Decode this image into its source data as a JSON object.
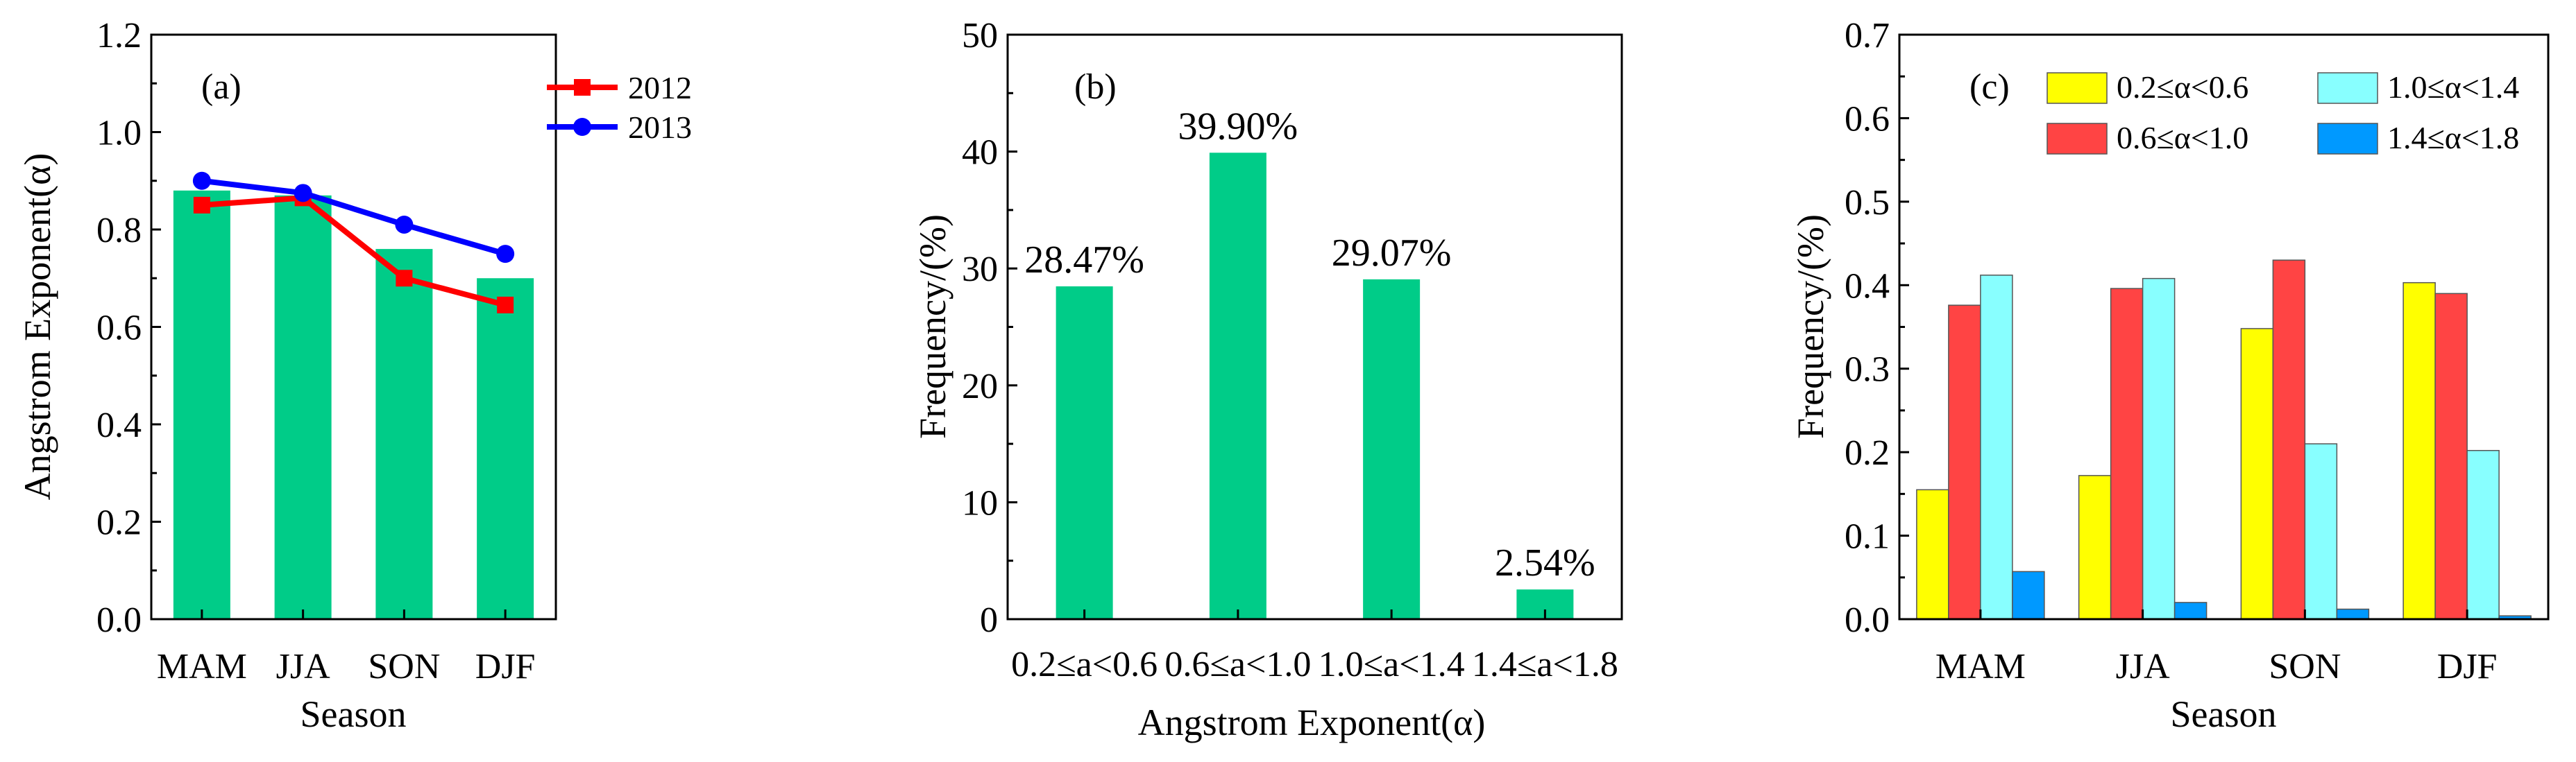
{
  "chart_data": [
    {
      "type": "bar",
      "panel_label": "(a)",
      "categories": [
        "MAM",
        "JJA",
        "SON",
        "DJF"
      ],
      "values": [
        0.88,
        0.87,
        0.76,
        0.7
      ],
      "bar_color": "#00cc88",
      "lines": [
        {
          "name": "2012",
          "values": [
            0.85,
            0.865,
            0.7,
            0.645
          ],
          "color": "#ff0000",
          "marker": "square"
        },
        {
          "name": "2013",
          "values": [
            0.9,
            0.875,
            0.81,
            0.75
          ],
          "color": "#0000ff",
          "marker": "circle"
        }
      ],
      "xlabel": "Season",
      "ylabel": "Angstrom Exponent(α)",
      "ylim": [
        0,
        1.2
      ],
      "yticks": [
        "0.0",
        "0.2",
        "0.4",
        "0.6",
        "0.8",
        "1.0",
        "1.2"
      ],
      "legend_position": "top-right"
    },
    {
      "type": "bar",
      "panel_label": "(b)",
      "categories": [
        "0.2≤a<0.6",
        "0.6≤a<1.0",
        "1.0≤a<1.4",
        "1.4≤a<1.8"
      ],
      "values": [
        28.47,
        39.9,
        29.07,
        2.54
      ],
      "data_labels": [
        "28.47%",
        "39.90%",
        "29.07%",
        "2.54%"
      ],
      "bar_color": "#00cc88",
      "xlabel": "Angstrom Exponent(α)",
      "ylabel": "Frequency/(%)",
      "ylim": [
        0,
        50
      ],
      "yticks": [
        "0",
        "10",
        "20",
        "30",
        "40",
        "50"
      ]
    },
    {
      "type": "bar",
      "panel_label": "(c)",
      "categories": [
        "MAM",
        "JJA",
        "SON",
        "DJF"
      ],
      "series": [
        {
          "name": "0.2≤α<0.6",
          "values": [
            0.155,
            0.172,
            0.348,
            0.403
          ],
          "color": "#ffff00"
        },
        {
          "name": "0.6≤α<1.0",
          "values": [
            0.376,
            0.396,
            0.43,
            0.39
          ],
          "color": "#ff4444"
        },
        {
          "name": "1.0≤α<1.4",
          "values": [
            0.412,
            0.408,
            0.21,
            0.202
          ],
          "color": "#88ffff"
        },
        {
          "name": "1.4≤α<1.8",
          "values": [
            0.057,
            0.02,
            0.012,
            0.004
          ],
          "color": "#0099ff"
        }
      ],
      "xlabel": "Season",
      "ylabel": "Frequency/(%)",
      "ylim": [
        0,
        0.7
      ],
      "yticks": [
        "0.0",
        "0.1",
        "0.2",
        "0.3",
        "0.4",
        "0.5",
        "0.6",
        "0.7"
      ],
      "legend_position": "top"
    }
  ]
}
